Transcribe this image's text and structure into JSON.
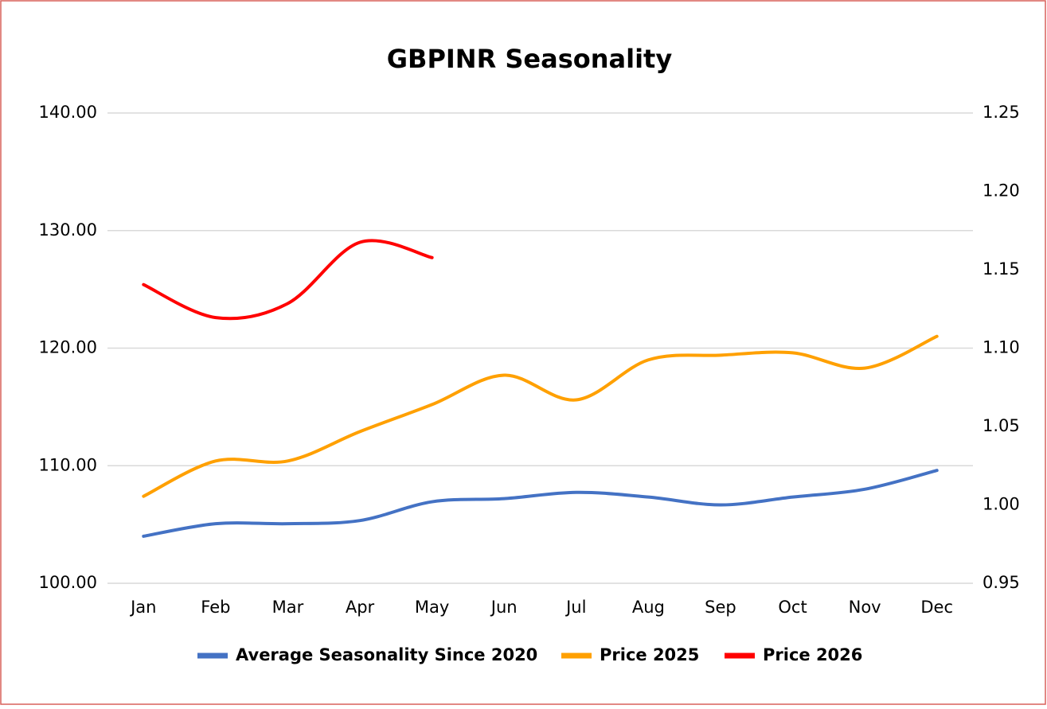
{
  "chart_data": {
    "type": "line",
    "title": "GBPINR Seasonality",
    "categories": [
      "Jan",
      "Feb",
      "Mar",
      "Apr",
      "May",
      "Jun",
      "Jul",
      "Aug",
      "Sep",
      "Oct",
      "Nov",
      "Dec"
    ],
    "series": [
      {
        "name": "Average Seasonality Since 2020",
        "color": "#4472c4",
        "axis": "y2",
        "values": [
          0.98,
          0.988,
          0.988,
          0.99,
          1.002,
          1.004,
          1.008,
          1.005,
          1.0,
          1.005,
          1.01,
          1.022
        ]
      },
      {
        "name": "Price 2025",
        "color": "#ffa000",
        "values": [
          107.4,
          110.4,
          110.4,
          112.9,
          115.2,
          117.7,
          115.6,
          119.0,
          119.4,
          119.6,
          118.3,
          121.0
        ]
      },
      {
        "name": "Price 2026",
        "color": "#ff0000",
        "values": [
          125.4,
          122.6,
          123.8,
          129.0,
          127.7,
          null,
          null,
          null,
          null,
          null,
          null,
          null
        ]
      }
    ],
    "ylim": [
      100,
      140
    ],
    "yticks": [
      {
        "value": 100,
        "label": "100.00"
      },
      {
        "value": 110,
        "label": "110.00"
      },
      {
        "value": 120,
        "label": "120.00"
      },
      {
        "value": 130,
        "label": "130.00"
      },
      {
        "value": 140,
        "label": "140.00"
      }
    ],
    "y2lim": [
      0.95,
      1.25
    ],
    "y2ticks": [
      0.95,
      {
        "value": 1.0,
        "label": "1.00"
      },
      1.05,
      {
        "value": 1.1,
        "label": "1.10"
      },
      1.15,
      {
        "value": 1.2,
        "label": "1.20"
      },
      1.25
    ],
    "grid": true,
    "legend": "bottom"
  }
}
